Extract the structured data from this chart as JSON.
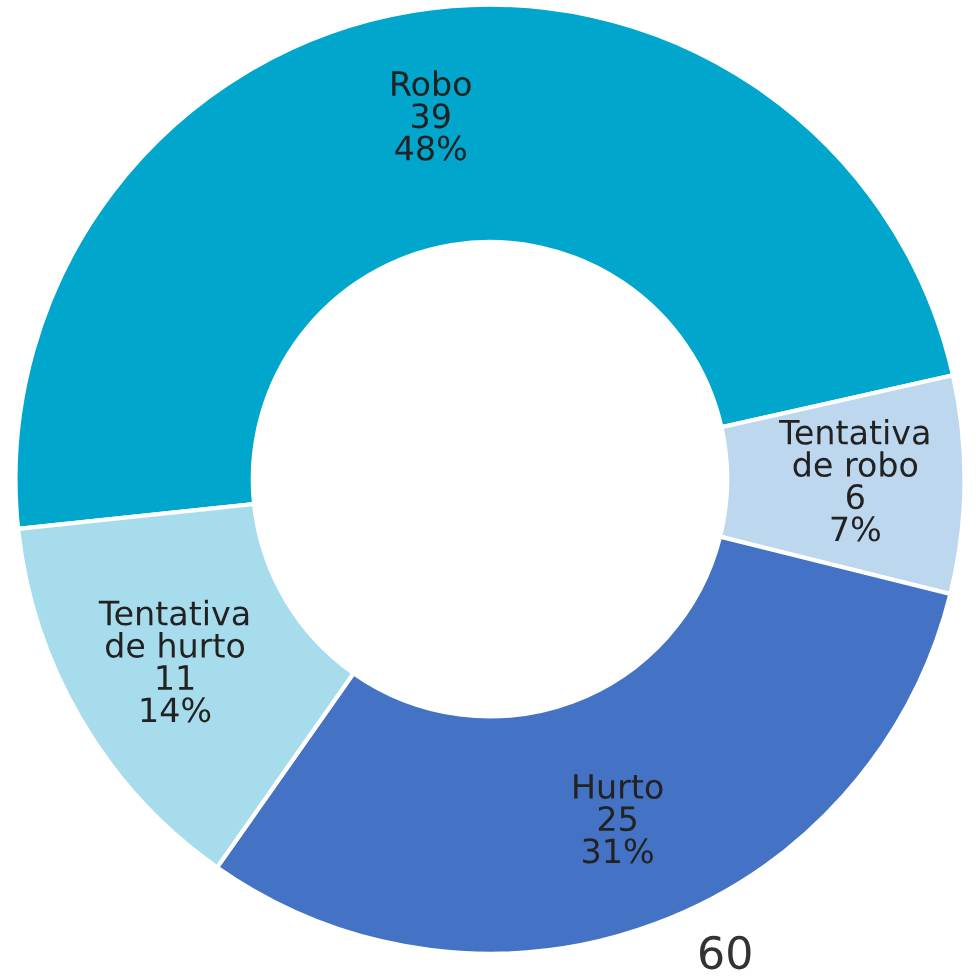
{
  "chart_data": {
    "type": "donut",
    "categories": [
      "Robo",
      "Tentativa de robo",
      "Hurto",
      "Tentativa de hurto"
    ],
    "values": [
      39,
      6,
      25,
      11
    ],
    "value_labels": [
      "39\n48%",
      "6\n7%",
      "25\n31%",
      "11\n14%"
    ],
    "colors": [
      "#00a6cc",
      "#bcd7ee",
      "#4472c4",
      "#a6dcec"
    ],
    "legend": false,
    "annotations": [
      "60"
    ]
  }
}
